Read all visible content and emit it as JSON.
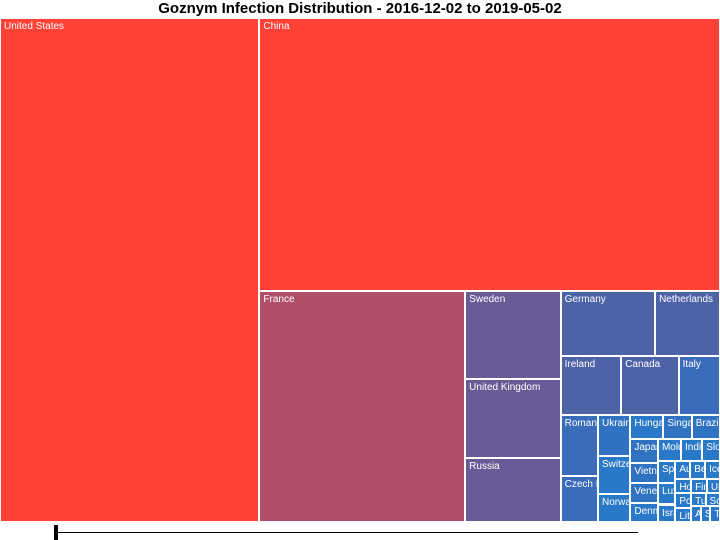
{
  "title": "Goznym Infection Distribution - 2016-12-02 to 2019-05-02",
  "chart_data": {
    "type": "treemap",
    "title": "Goznym Infection Distribution - 2016-12-02 to 2019-05-02",
    "date_start": "2016-12-02",
    "date_end": "2019-05-02",
    "colors": {
      "high": "#ff4136",
      "mid": "#6a5a96",
      "low": "#2a78c8"
    },
    "items": [
      {
        "name": "United States",
        "value": 3440,
        "color": "#ff4136"
      },
      {
        "name": "China",
        "value": 3310,
        "color": "#ff4136"
      },
      {
        "name": "France",
        "value": 1250,
        "color": "#b05068"
      },
      {
        "name": "United Kingdom",
        "value": 200,
        "color": "#6a5a96"
      },
      {
        "name": "Sweden",
        "value": 220,
        "color": "#6a5a96"
      },
      {
        "name": "Russia",
        "value": 160,
        "color": "#6a5a96"
      },
      {
        "name": "Germany",
        "value": 160,
        "color": "#4e62a8"
      },
      {
        "name": "Netherlands",
        "value": 110,
        "color": "#4e62a8"
      },
      {
        "name": "Canada",
        "value": 90,
        "color": "#4e62a8"
      },
      {
        "name": "Ireland",
        "value": 95,
        "color": "#4e62a8"
      },
      {
        "name": "Italy",
        "value": 65,
        "color": "#3b6cba"
      },
      {
        "name": "Romania",
        "value": 60,
        "color": "#3b6cba"
      },
      {
        "name": "Czech Republic",
        "value": 45,
        "color": "#3b6cba"
      },
      {
        "name": "Ukraine",
        "value": 35,
        "color": "#2f72c2"
      },
      {
        "name": "Singapore",
        "value": 18,
        "color": "#2f72c2"
      },
      {
        "name": "Brazil",
        "value": 18,
        "color": "#2f72c2"
      },
      {
        "name": "Japan",
        "value": 17,
        "color": "#2f72c2"
      },
      {
        "name": "Vietnam",
        "value": 15,
        "color": "#2f72c2"
      },
      {
        "name": "Venezuela",
        "value": 14,
        "color": "#2f72c2"
      },
      {
        "name": "Switzerland",
        "value": 32,
        "color": "#2a78c8"
      },
      {
        "name": "Norway",
        "value": 24,
        "color": "#2a78c8"
      },
      {
        "name": "Hungary",
        "value": 21,
        "color": "#2a78c8"
      },
      {
        "name": "Denmark",
        "value": 14,
        "color": "#2a78c8"
      },
      {
        "name": "Slovakia",
        "value": 10,
        "color": "#2a78c8"
      },
      {
        "name": "Spain",
        "value": 10,
        "color": "#2a78c8"
      },
      {
        "name": "Israel",
        "value": 8,
        "color": "#2a78c8"
      },
      {
        "name": "Australia",
        "value": 7,
        "color": "#2a78c8"
      },
      {
        "name": "Belgium",
        "value": 7,
        "color": "#2a78c8"
      },
      {
        "name": "Moldova",
        "value": 13,
        "color": "#2a78c8"
      },
      {
        "name": "Iceland",
        "value": 7,
        "color": "#2a78c8"
      },
      {
        "name": "Hong Kong",
        "value": 6,
        "color": "#2a78c8"
      },
      {
        "name": "Poland",
        "value": 6,
        "color": "#2a78c8"
      },
      {
        "name": "United Arab Emirates",
        "value": 5,
        "color": "#2a78c8"
      },
      {
        "name": "India",
        "value": 12,
        "color": "#2a78c8"
      },
      {
        "name": "Lithuania",
        "value": 6,
        "color": "#2a78c8"
      },
      {
        "name": "Finland",
        "value": 6,
        "color": "#2a78c8"
      },
      {
        "name": "Luxembourg",
        "value": 10,
        "color": "#2a78c8"
      },
      {
        "name": "Turkey",
        "value": 5,
        "color": "#2a78c8"
      },
      {
        "name": "South Korea",
        "value": 5,
        "color": "#2a78c8"
      },
      {
        "name": "Austria",
        "value": 4,
        "color": "#2a78c8"
      },
      {
        "name": "Slovenia",
        "value": 4,
        "color": "#2a78c8"
      },
      {
        "name": "Taiwan",
        "value": 4,
        "color": "#2a78c8"
      }
    ]
  },
  "timeline": {}
}
